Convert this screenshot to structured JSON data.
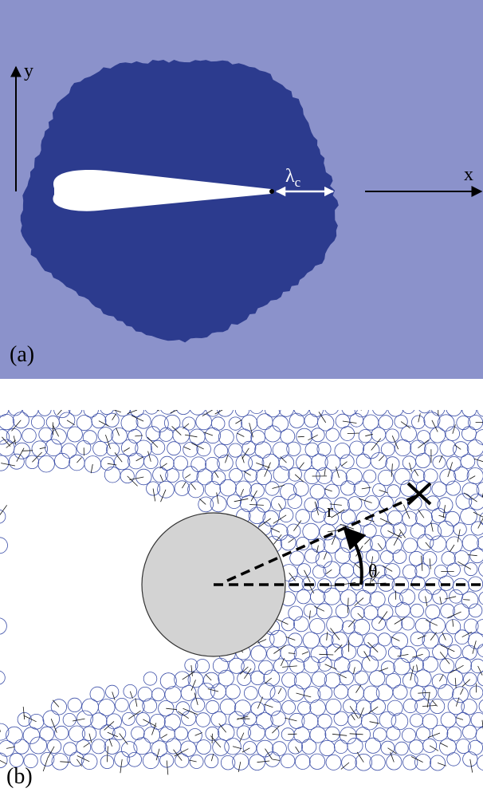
{
  "panel_a": {
    "label": "(a)",
    "y_axis": "y",
    "x_axis": "x",
    "length_symbol": "λ",
    "length_subscript": "c"
  },
  "panel_b": {
    "label": "(b)",
    "radius_label": "r",
    "angle_label": "θ"
  }
}
